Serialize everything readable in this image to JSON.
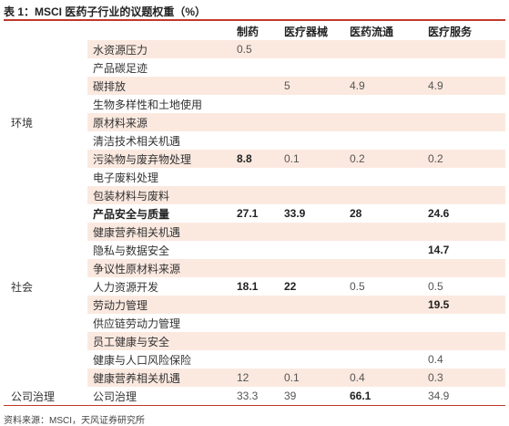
{
  "title": "表 1：MSCI 医药子行业的议题权重（%）",
  "headers": [
    "",
    "",
    "制药",
    "医疗器械",
    "医药流通",
    "医疗服务"
  ],
  "categories": {
    "environment": "环境",
    "society": "社会",
    "governance": "公司治理"
  },
  "rows": [
    {
      "cat": "",
      "issue": "水资源压力",
      "v": [
        "0.5",
        "",
        "",
        ""
      ],
      "bold": [
        false,
        false,
        false,
        false
      ],
      "alt": true
    },
    {
      "cat": "",
      "issue": "产品碳足迹",
      "v": [
        "",
        "",
        "",
        ""
      ],
      "bold": [
        false,
        false,
        false,
        false
      ],
      "alt": false
    },
    {
      "cat": "",
      "issue": "碳排放",
      "v": [
        "",
        "5",
        "4.9",
        "4.9"
      ],
      "bold": [
        false,
        false,
        false,
        false
      ],
      "alt": true
    },
    {
      "cat": "",
      "issue": "生物多样性和土地使用",
      "v": [
        "",
        "",
        "",
        ""
      ],
      "bold": [
        false,
        false,
        false,
        false
      ],
      "alt": false
    },
    {
      "cat": "环境",
      "issue": "原材料来源",
      "v": [
        "",
        "",
        "",
        ""
      ],
      "bold": [
        false,
        false,
        false,
        false
      ],
      "alt": true
    },
    {
      "cat": "",
      "issue": "清洁技术相关机遇",
      "v": [
        "",
        "",
        "",
        ""
      ],
      "bold": [
        false,
        false,
        false,
        false
      ],
      "alt": false
    },
    {
      "cat": "",
      "issue": "污染物与废弃物处理",
      "v": [
        "8.8",
        "0.1",
        "0.2",
        "0.2"
      ],
      "bold": [
        true,
        false,
        false,
        false
      ],
      "alt": true
    },
    {
      "cat": "",
      "issue": "电子废料处理",
      "v": [
        "",
        "",
        "",
        ""
      ],
      "bold": [
        false,
        false,
        false,
        false
      ],
      "alt": false
    },
    {
      "cat": "",
      "issue": "包装材料与废料",
      "v": [
        "",
        "",
        "",
        ""
      ],
      "bold": [
        false,
        false,
        false,
        false
      ],
      "alt": true
    },
    {
      "cat": "",
      "issue": "产品安全与质量",
      "v": [
        "27.1",
        "33.9",
        "28",
        "24.6"
      ],
      "bold": [
        true,
        true,
        true,
        true
      ],
      "alt": false,
      "issue_bold": true
    },
    {
      "cat": "",
      "issue": "健康营养相关机遇",
      "v": [
        "",
        "",
        "",
        ""
      ],
      "bold": [
        false,
        false,
        false,
        false
      ],
      "alt": true
    },
    {
      "cat": "",
      "issue": "隐私与数据安全",
      "v": [
        "",
        "",
        "",
        "14.7"
      ],
      "bold": [
        false,
        false,
        false,
        true
      ],
      "alt": false
    },
    {
      "cat": "",
      "issue": "争议性原材料来源",
      "v": [
        "",
        "",
        "",
        ""
      ],
      "bold": [
        false,
        false,
        false,
        false
      ],
      "alt": true
    },
    {
      "cat": "社会",
      "issue": "人力资源开发",
      "v": [
        "18.1",
        "22",
        "0.5",
        "0.5"
      ],
      "bold": [
        true,
        true,
        false,
        false
      ],
      "alt": false
    },
    {
      "cat": "",
      "issue": "劳动力管理",
      "v": [
        "",
        "",
        "",
        "19.5"
      ],
      "bold": [
        false,
        false,
        false,
        true
      ],
      "alt": true
    },
    {
      "cat": "",
      "issue": "供应链劳动力管理",
      "v": [
        "",
        "",
        "",
        ""
      ],
      "bold": [
        false,
        false,
        false,
        false
      ],
      "alt": false
    },
    {
      "cat": "",
      "issue": "员工健康与安全",
      "v": [
        "",
        "",
        "",
        ""
      ],
      "bold": [
        false,
        false,
        false,
        false
      ],
      "alt": true
    },
    {
      "cat": "",
      "issue": "健康与人口风险保险",
      "v": [
        "",
        "",
        "",
        "0.4"
      ],
      "bold": [
        false,
        false,
        false,
        false
      ],
      "alt": false
    },
    {
      "cat": "",
      "issue": "健康营养相关机遇",
      "v": [
        "12",
        "0.1",
        "0.4",
        "0.3"
      ],
      "bold": [
        false,
        false,
        false,
        false
      ],
      "alt": true
    },
    {
      "cat": "公司治理",
      "issue": "公司治理",
      "v": [
        "33.3",
        "39",
        "66.1",
        "34.9"
      ],
      "bold": [
        false,
        false,
        true,
        false
      ],
      "alt": false
    }
  ],
  "source": "资料来源：MSCI，天风证券研究所",
  "colors": {
    "accent": "#c0392b",
    "band": "#fbe9e0"
  }
}
